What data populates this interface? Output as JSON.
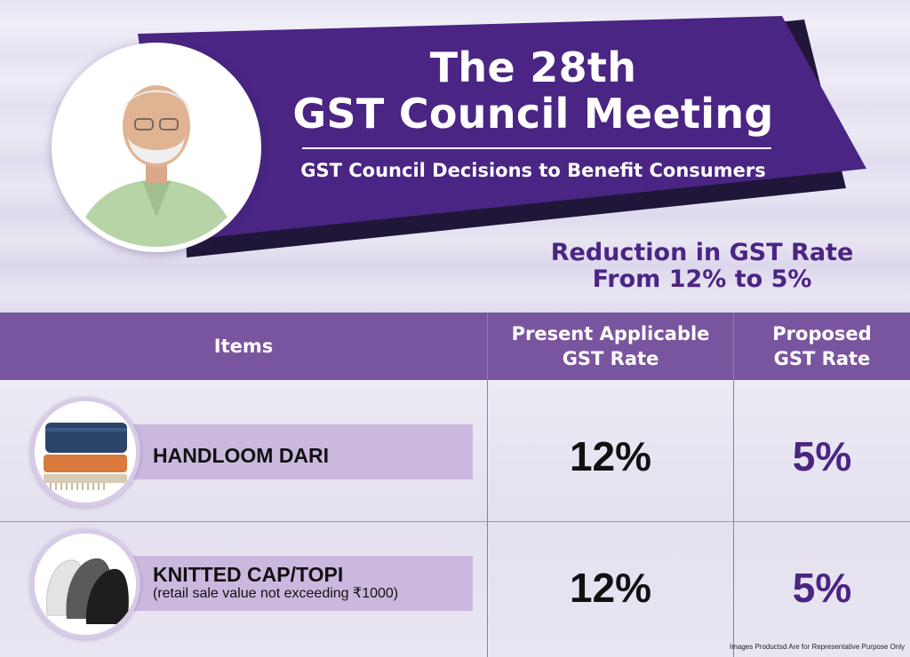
{
  "header": {
    "title_line1": "The 28th",
    "title_line2": "GST Council Meeting",
    "subtitle": "GST Council Decisions to Benefit Consumers",
    "reduction_line1": "Reduction in GST Rate",
    "reduction_line2": "From 12% to 5%"
  },
  "table": {
    "headers": {
      "items": "Items",
      "present_line1": "Present Applicable",
      "present_line2": "GST Rate",
      "proposed_line1": "Proposed",
      "proposed_line2": "GST Rate"
    },
    "rows": [
      {
        "name": "HANDLOOM DARI",
        "note": "",
        "present_rate": "12%",
        "proposed_rate": "5%"
      },
      {
        "name": "KNITTED CAP/TOPI",
        "note": "(retail sale value not exceeding ₹1000)",
        "present_rate": "12%",
        "proposed_rate": "5%"
      }
    ]
  },
  "footer": {
    "disclaimer": "Images Productsd Are for Representative Purpose Only"
  },
  "colors": {
    "banner_purple": "#4a2583",
    "banner_shadow": "#20163a",
    "header_row": "#7a559f",
    "label_band": "#cbb8de",
    "accent_text": "#4a2583"
  },
  "icons": {
    "portrait": "person-portrait-icon",
    "dari": "folded-rugs-icon",
    "cap": "knitted-caps-icon"
  }
}
